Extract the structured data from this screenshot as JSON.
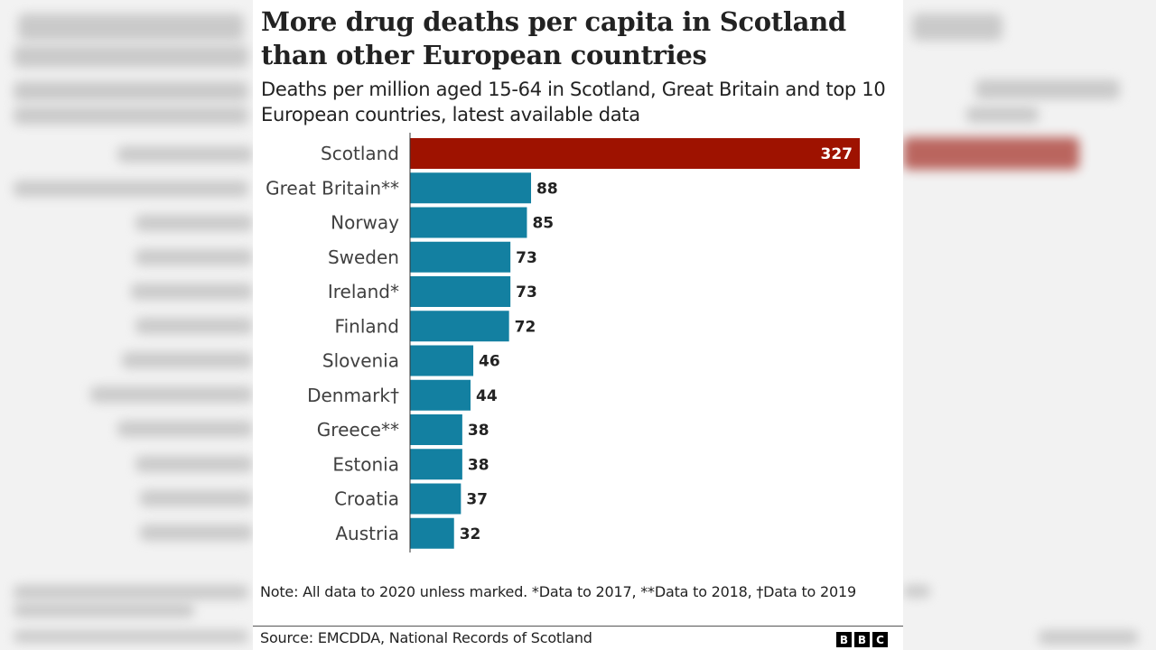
{
  "chart_data": {
    "type": "bar",
    "orientation": "horizontal",
    "title": "More drug deaths per capita in Scotland than other European countries",
    "subtitle": "Deaths per million aged 15-64 in Scotland, Great Britain and top 10 European countries, latest available data",
    "categories": [
      "Scotland",
      "Great Britain**",
      "Norway",
      "Sweden",
      "Ireland*",
      "Finland",
      "Slovenia",
      "Denmark†",
      "Greece**",
      "Estonia",
      "Croatia",
      "Austria"
    ],
    "values": [
      327,
      88,
      85,
      73,
      73,
      72,
      46,
      44,
      38,
      38,
      37,
      32
    ],
    "highlight": "Scotland",
    "colors": {
      "highlight": "#9e1200",
      "default": "#1380a1"
    },
    "xlim": [
      0,
      327
    ],
    "grid": false,
    "data_labels": true
  },
  "footer": {
    "note": "Note: All data to 2020 unless marked. *Data to 2017, **Data to 2018, †Data to 2019",
    "source": "Source: EMCDDA, National Records of Scotland",
    "logo": [
      "B",
      "B",
      "C"
    ]
  }
}
